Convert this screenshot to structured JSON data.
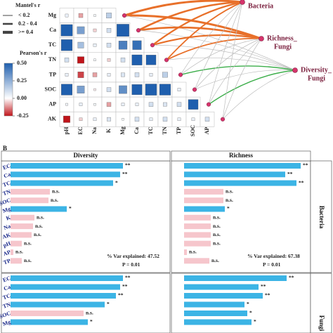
{
  "chart_data": [
    {
      "type": "heatmap",
      "columns": [
        "pH",
        "EC",
        "Na",
        "K",
        "Mg",
        "Ca",
        "TC",
        "TN",
        "TP",
        "SOC",
        "AP"
      ],
      "rows": [
        "Mg",
        "Ca",
        "TC",
        "TN",
        "TP",
        "SOC",
        "AP",
        "AK"
      ],
      "values": [
        [
          0.05,
          -0.1,
          0.02,
          0.15,
          null,
          null,
          null,
          null,
          null,
          null,
          null
        ],
        [
          0.75,
          0.3,
          -0.05,
          0.1,
          0.85,
          null,
          null,
          null,
          null,
          null,
          null
        ],
        [
          0.7,
          0.2,
          0.05,
          0.1,
          0.4,
          0.45,
          null,
          null,
          null,
          null,
          null
        ],
        [
          0.1,
          -0.25,
          0.02,
          -0.05,
          0.1,
          0.6,
          0.55,
          null,
          null,
          null,
          null
        ],
        [
          0.05,
          -0.2,
          -0.1,
          0.05,
          0.08,
          0.1,
          0.05,
          0.15,
          null,
          null,
          null
        ],
        [
          0.69,
          0.3,
          -0.02,
          0.1,
          0.35,
          0.6,
          0.72,
          0.7,
          0.05,
          null,
          null
        ],
        [
          0.03,
          0.05,
          0.02,
          -0.1,
          0.05,
          0.05,
          0.1,
          0.08,
          0.1,
          0.55,
          null
        ],
        [
          -0.25,
          -0.05,
          0.05,
          0.08,
          0.02,
          0.1,
          0.05,
          0.1,
          0.05,
          0.05,
          0.1
        ]
      ],
      "colorbar": {
        "title": "Pearson's r",
        "lim": [
          -0.25,
          0.5
        ],
        "ticks": [
          {
            "value": 0.5,
            "label": "0.50"
          },
          0.25,
          {
            "value": 0,
            "label": "0.00"
          },
          -0.25
        ]
      },
      "mantel_legend": {
        "title": "Mantel's r",
        "labels": [
          "< 0.2",
          "0.2 - 0.4",
          ">= 0.4"
        ]
      },
      "targets": [
        [
          "Bacteria"
        ],
        [
          "Richness_",
          "Fungi"
        ],
        [
          "Diversity_",
          "Fungi"
        ]
      ]
    },
    {
      "type": "barh",
      "panel_label": "B",
      "strip": "Bacteria",
      "categories": [
        "EC",
        "Ca",
        "TC",
        "TN",
        "SOC",
        "Mg",
        "K",
        "Na",
        "AK",
        "pH",
        "AP",
        "TP"
      ],
      "series": [
        {
          "name": "Diversity",
          "values": [
            80,
            78,
            73,
            28,
            27,
            40,
            17,
            16,
            15,
            8,
            2,
            8
          ],
          "colors": [
            "#3cb4e5",
            "#3cb4e5",
            "#3cb4e5",
            "#f6c6cc",
            "#f6c6cc",
            "#3cb4e5",
            "#f6c6cc",
            "#f6c6cc",
            "#f6c6cc",
            "#f6c6cc",
            "#f6c6cc",
            "#f6c6cc"
          ],
          "annotations": [
            "**",
            "**",
            "*",
            "n.s.",
            "n.s.",
            "*",
            "n.s.",
            "n.s.",
            "n.s.",
            "n.s.",
            "n.s.",
            "n.s."
          ],
          "note": "% Var explained: 47.52",
          "p": "P = 0.01"
        },
        {
          "name": "Richness",
          "values": [
            83,
            72,
            80,
            28,
            28,
            29,
            19,
            19,
            19,
            19,
            2,
            18
          ],
          "colors": [
            "#3cb4e5",
            "#3cb4e5",
            "#3cb4e5",
            "#f6c6cc",
            "#f6c6cc",
            "#3cb4e5",
            "#f6c6cc",
            "#f6c6cc",
            "#f6c6cc",
            "#f6c6cc",
            "#f6c6cc",
            "#f6c6cc"
          ],
          "annotations": [
            "**",
            "**",
            "**",
            "n.s.",
            "n.s.",
            "*",
            "n.s.",
            "n.s.",
            "n.s.",
            "n.s.",
            "n.s.",
            "n.s."
          ],
          "note": "% Var explained: 67.38",
          "p": "P = 0.01"
        }
      ]
    },
    {
      "type": "barh",
      "strip": "Fungi",
      "categories": [
        "EC",
        "Ca",
        "TC",
        "TN",
        "SOC",
        "Mg"
      ],
      "series": [
        {
          "values": [
            80,
            78,
            75,
            67,
            52,
            55
          ],
          "colors": [
            "#3cb4e5",
            "#3cb4e5",
            "#3cb4e5",
            "#3cb4e5",
            "#f6c6cc",
            "#3cb4e5"
          ],
          "annotations": [
            "**",
            "**",
            "**",
            "*",
            "n.s.",
            "*"
          ]
        },
        {
          "values": [
            73,
            53,
            56,
            43,
            45,
            48
          ],
          "colors": [
            "#3cb4e5",
            "#3cb4e5",
            "#3cb4e5",
            "#3cb4e5",
            "#3cb4e5",
            "#3cb4e5"
          ],
          "annotations": [
            "**",
            "**",
            "**",
            "*",
            "*",
            "*"
          ]
        }
      ]
    }
  ]
}
